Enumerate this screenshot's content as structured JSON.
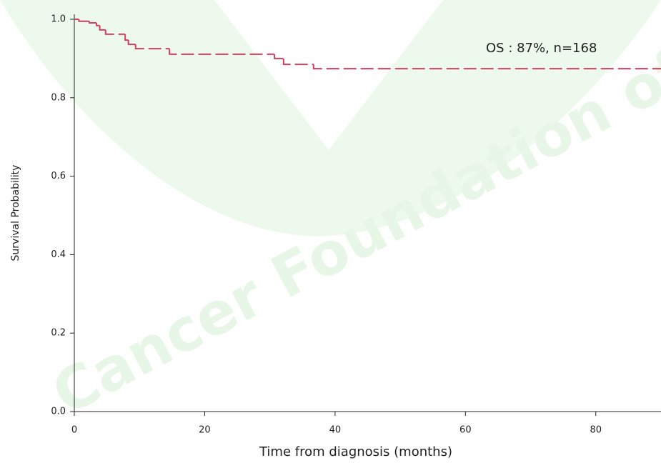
{
  "chart_data": {
    "type": "step",
    "watermark": "Cancer Foundation of",
    "annotation": "OS : 87%, n=168",
    "xlabel": "Time from diagnosis (months)",
    "ylabel": "Survival Probability",
    "color": "#d2405e",
    "x": [
      0,
      0.7,
      2.3,
      3.4,
      3.9,
      4.8,
      7.8,
      8.3,
      9.4,
      14.6,
      30.7,
      32.1,
      36.7,
      90
    ],
    "values": [
      1.0,
      0.995,
      0.991,
      0.984,
      0.973,
      0.962,
      0.947,
      0.936,
      0.925,
      0.911,
      0.9,
      0.885,
      0.874,
      0.874
    ],
    "xlim": [
      0,
      90
    ],
    "ylim": [
      0,
      1
    ],
    "xticks": [
      0,
      20,
      40,
      60,
      80
    ],
    "yticks": [
      {
        "value": 0,
        "label": "0.0"
      },
      0.2,
      0.4,
      0.6,
      0.8,
      {
        "value": 1,
        "label": "1.0"
      }
    ]
  }
}
